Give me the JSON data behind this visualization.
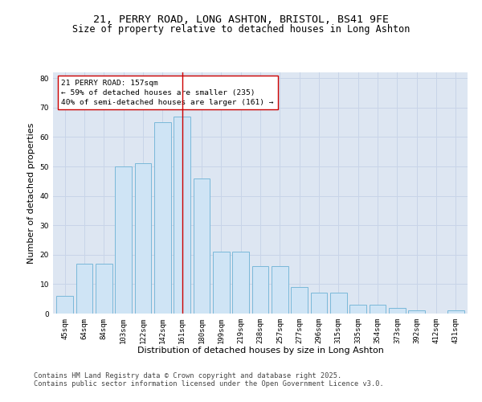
{
  "title_line1": "21, PERRY ROAD, LONG ASHTON, BRISTOL, BS41 9FE",
  "title_line2": "Size of property relative to detached houses in Long Ashton",
  "xlabel": "Distribution of detached houses by size in Long Ashton",
  "ylabel": "Number of detached properties",
  "categories": [
    "45sqm",
    "64sqm",
    "84sqm",
    "103sqm",
    "122sqm",
    "142sqm",
    "161sqm",
    "180sqm",
    "199sqm",
    "219sqm",
    "238sqm",
    "257sqm",
    "277sqm",
    "296sqm",
    "315sqm",
    "335sqm",
    "354sqm",
    "373sqm",
    "392sqm",
    "412sqm",
    "431sqm"
  ],
  "values": [
    6,
    17,
    17,
    50,
    51,
    65,
    67,
    46,
    21,
    21,
    16,
    16,
    9,
    7,
    7,
    3,
    3,
    2,
    1,
    0,
    1
  ],
  "bar_color": "#cfe4f5",
  "bar_edge_color": "#7ab8d9",
  "highlight_bar_index": 6,
  "vline_color": "#cc0000",
  "annotation_text": "21 PERRY ROAD: 157sqm\n← 59% of detached houses are smaller (235)\n40% of semi-detached houses are larger (161) →",
  "annotation_box_color": "#ffffff",
  "annotation_box_edge": "#cc0000",
  "ylim": [
    0,
    82
  ],
  "yticks": [
    0,
    10,
    20,
    30,
    40,
    50,
    60,
    70,
    80
  ],
  "grid_color": "#c8d4e8",
  "bg_color": "#dde6f2",
  "footer_line1": "Contains HM Land Registry data © Crown copyright and database right 2025.",
  "footer_line2": "Contains public sector information licensed under the Open Government Licence v3.0.",
  "title_fontsize": 9.5,
  "subtitle_fontsize": 8.5,
  "xlabel_fontsize": 8,
  "ylabel_fontsize": 8,
  "tick_fontsize": 6.5,
  "annotation_fontsize": 6.8,
  "footer_fontsize": 6.2
}
